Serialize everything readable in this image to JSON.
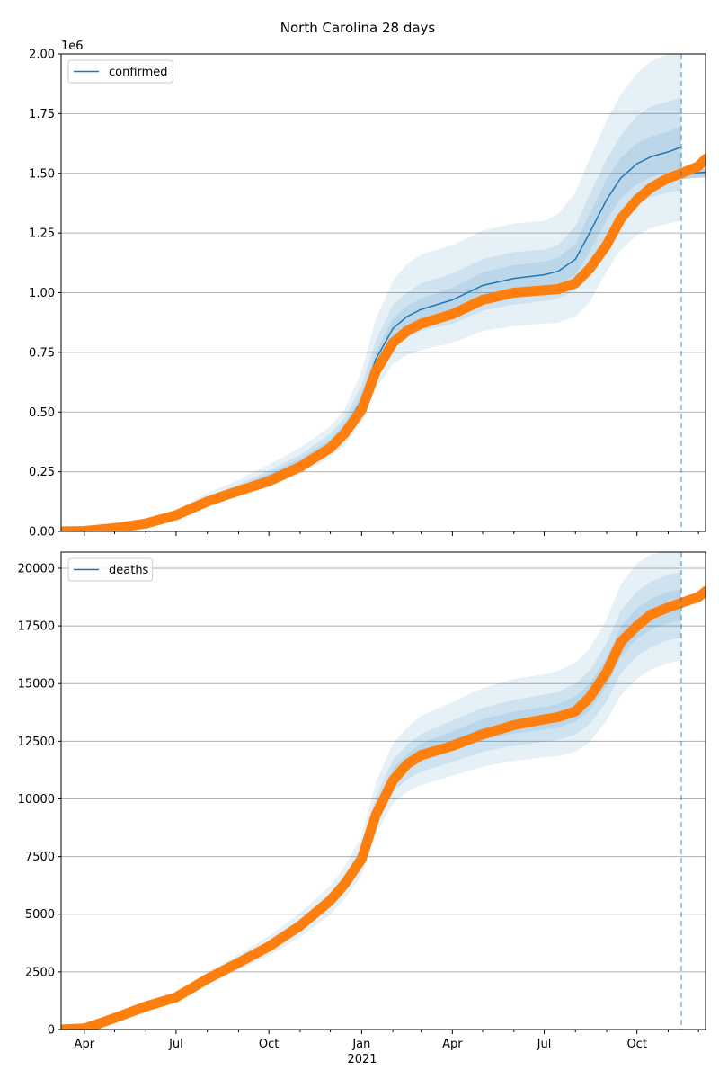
{
  "title": "North Carolina 28 days",
  "x_tick_labels": [
    "Apr",
    "Jul",
    "Oct",
    "Jan",
    "Apr",
    "Jul",
    "Oct"
  ],
  "x_year_label": "2021",
  "colors": {
    "model_line": "#1f77b4",
    "observed": "#ff7f0e",
    "band": "#1f77b4",
    "grid": "#b0b0b0",
    "forecast_marker": "#1f77b4"
  },
  "chart_data": [
    {
      "type": "line",
      "name": "confirmed",
      "legend": "confirmed",
      "legend_position": "top-left",
      "grid": "horizontal",
      "y_offset_label": "1e6",
      "ylim": [
        0,
        2.0
      ],
      "y_ticks": [
        "0.00",
        "0.25",
        "0.50",
        "0.75",
        "1.00",
        "1.25",
        "1.50",
        "1.75",
        "2.00"
      ],
      "xlim": [
        "2020-03-09",
        "2021-12-08"
      ],
      "forecast_start": "2021-11-14",
      "model": {
        "x": [
          "2020-03-09",
          "2020-04-01",
          "2020-05-01",
          "2020-06-01",
          "2020-07-01",
          "2020-08-01",
          "2020-09-01",
          "2020-10-01",
          "2020-11-01",
          "2020-12-01",
          "2020-12-15",
          "2021-01-01",
          "2021-01-15",
          "2021-02-01",
          "2021-02-15",
          "2021-03-01",
          "2021-04-01",
          "2021-05-01",
          "2021-06-01",
          "2021-07-01",
          "2021-07-15",
          "2021-08-01",
          "2021-08-15",
          "2021-09-01",
          "2021-09-15",
          "2021-10-01",
          "2021-10-15",
          "2021-11-01",
          "2021-11-14"
        ],
        "y": [
          0.0,
          0.002,
          0.015,
          0.035,
          0.07,
          0.13,
          0.18,
          0.23,
          0.29,
          0.37,
          0.43,
          0.55,
          0.72,
          0.85,
          0.9,
          0.93,
          0.97,
          1.03,
          1.06,
          1.075,
          1.09,
          1.14,
          1.25,
          1.39,
          1.48,
          1.54,
          1.57,
          1.59,
          1.61
        ]
      },
      "bands": [
        {
          "lower": [
            0.0,
            0.0,
            0.008,
            0.025,
            0.055,
            0.105,
            0.15,
            0.19,
            0.24,
            0.31,
            0.36,
            0.46,
            0.6,
            0.7,
            0.74,
            0.76,
            0.79,
            0.84,
            0.86,
            0.87,
            0.875,
            0.9,
            0.96,
            1.09,
            1.18,
            1.24,
            1.27,
            1.29,
            1.3
          ],
          "upper": [
            0.003,
            0.006,
            0.024,
            0.05,
            0.09,
            0.16,
            0.215,
            0.28,
            0.35,
            0.44,
            0.51,
            0.67,
            0.89,
            1.05,
            1.12,
            1.16,
            1.2,
            1.26,
            1.29,
            1.3,
            1.33,
            1.42,
            1.56,
            1.72,
            1.83,
            1.92,
            1.97,
            2.0,
            2.02
          ]
        },
        {
          "lower": [
            0.0,
            0.0,
            0.011,
            0.029,
            0.062,
            0.115,
            0.163,
            0.205,
            0.262,
            0.337,
            0.39,
            0.5,
            0.66,
            0.77,
            0.81,
            0.84,
            0.87,
            0.925,
            0.95,
            0.965,
            0.975,
            1.01,
            1.09,
            1.22,
            1.31,
            1.37,
            1.4,
            1.42,
            1.43
          ],
          "upper": [
            0.002,
            0.004,
            0.019,
            0.043,
            0.08,
            0.145,
            0.197,
            0.255,
            0.32,
            0.41,
            0.475,
            0.61,
            0.8,
            0.95,
            1.0,
            1.04,
            1.08,
            1.14,
            1.17,
            1.18,
            1.2,
            1.28,
            1.41,
            1.56,
            1.66,
            1.74,
            1.78,
            1.8,
            1.82
          ]
        },
        {
          "lower": [
            0.0,
            0.001,
            0.013,
            0.032,
            0.066,
            0.122,
            0.172,
            0.218,
            0.276,
            0.354,
            0.41,
            0.525,
            0.69,
            0.81,
            0.855,
            0.885,
            0.92,
            0.975,
            1.005,
            1.02,
            1.032,
            1.075,
            1.17,
            1.305,
            1.395,
            1.455,
            1.485,
            1.505,
            1.52
          ],
          "upper": [
            0.002,
            0.003,
            0.017,
            0.038,
            0.075,
            0.138,
            0.188,
            0.242,
            0.304,
            0.386,
            0.45,
            0.575,
            0.75,
            0.89,
            0.945,
            0.975,
            1.02,
            1.085,
            1.115,
            1.13,
            1.148,
            1.205,
            1.33,
            1.475,
            1.565,
            1.625,
            1.655,
            1.675,
            1.7
          ]
        }
      ],
      "forecast_line": {
        "x": [
          "2021-11-14",
          "2021-11-24",
          "2021-12-08"
        ],
        "y": [
          1.49,
          1.5,
          1.505
        ],
        "lower": [
          1.475,
          1.48,
          1.482
        ],
        "upper": [
          1.505,
          1.515,
          1.52
        ]
      },
      "observed": {
        "x": [
          "2020-03-09",
          "2020-04-01",
          "2020-05-01",
          "2020-06-01",
          "2020-07-01",
          "2020-08-01",
          "2020-09-01",
          "2020-10-01",
          "2020-11-01",
          "2020-12-01",
          "2020-12-15",
          "2021-01-01",
          "2021-01-15",
          "2021-02-01",
          "2021-02-15",
          "2021-03-01",
          "2021-04-01",
          "2021-05-01",
          "2021-06-01",
          "2021-07-01",
          "2021-07-15",
          "2021-08-01",
          "2021-08-15",
          "2021-09-01",
          "2021-09-15",
          "2021-10-01",
          "2021-10-15",
          "2021-11-01",
          "2021-11-14",
          "2021-12-01",
          "2021-12-08"
        ],
        "y": [
          0.0,
          0.002,
          0.014,
          0.033,
          0.068,
          0.125,
          0.17,
          0.21,
          0.27,
          0.35,
          0.41,
          0.51,
          0.67,
          0.79,
          0.84,
          0.87,
          0.91,
          0.97,
          1.0,
          1.01,
          1.015,
          1.04,
          1.1,
          1.2,
          1.31,
          1.39,
          1.44,
          1.48,
          1.5,
          1.53,
          1.56
        ]
      }
    },
    {
      "type": "line",
      "name": "deaths",
      "legend": "deaths",
      "legend_position": "top-left",
      "grid": "horizontal",
      "ylim": [
        0,
        20700
      ],
      "y_ticks": [
        "0",
        "2500",
        "5000",
        "7500",
        "10000",
        "12500",
        "15000",
        "17500",
        "20000"
      ],
      "xlim": [
        "2020-03-09",
        "2021-12-08"
      ],
      "forecast_start": "2021-11-14",
      "model": {
        "x": [
          "2020-03-09",
          "2020-04-01",
          "2020-05-01",
          "2020-06-01",
          "2020-07-01",
          "2020-08-01",
          "2020-09-01",
          "2020-10-01",
          "2020-11-01",
          "2020-12-01",
          "2020-12-15",
          "2021-01-01",
          "2021-01-15",
          "2021-02-01",
          "2021-02-15",
          "2021-03-01",
          "2021-04-01",
          "2021-05-01",
          "2021-06-01",
          "2021-07-01",
          "2021-07-15",
          "2021-08-01",
          "2021-08-15",
          "2021-09-01",
          "2021-09-15",
          "2021-10-01",
          "2021-10-15",
          "2021-11-01",
          "2021-11-14"
        ],
        "y": [
          0,
          50,
          500,
          1000,
          1400,
          2200,
          2900,
          3600,
          4500,
          5600,
          6300,
          7500,
          9500,
          11000,
          11600,
          12000,
          12500,
          13000,
          13300,
          13500,
          13600,
          13900,
          14400,
          15500,
          16800,
          17600,
          18000,
          18300,
          18400
        ]
      },
      "bands": [
        {
          "lower": [
            0,
            0,
            400,
            850,
            1250,
            1950,
            2600,
            3200,
            4000,
            5000,
            5650,
            6700,
            8500,
            9800,
            10300,
            10600,
            11000,
            11400,
            11650,
            11800,
            11850,
            12050,
            12450,
            13400,
            14500,
            15200,
            15600,
            15900,
            16000
          ],
          "upper": [
            50,
            120,
            620,
            1180,
            1600,
            2480,
            3250,
            4050,
            5050,
            6250,
            7050,
            8400,
            10700,
            12400,
            13100,
            13600,
            14200,
            14800,
            15200,
            15400,
            15550,
            15900,
            16500,
            17800,
            19300,
            20200,
            20600,
            20750,
            20800
          ]
        },
        {
          "lower": [
            0,
            20,
            440,
            900,
            1310,
            2050,
            2720,
            3360,
            4220,
            5270,
            5930,
            7040,
            8950,
            10320,
            10850,
            11180,
            11600,
            12050,
            12310,
            12480,
            12560,
            12790,
            13240,
            14240,
            15440,
            16200,
            16580,
            16880,
            16990
          ],
          "upper": [
            30,
            90,
            570,
            1110,
            1510,
            2350,
            3090,
            3840,
            4780,
            5930,
            6670,
            7960,
            10080,
            11680,
            12350,
            12820,
            13400,
            13950,
            14290,
            14520,
            14640,
            15010,
            15560,
            16760,
            18160,
            19000,
            19420,
            19720,
            19810
          ]
        },
        {
          "lower": [
            0,
            30,
            470,
            950,
            1360,
            2130,
            2820,
            3500,
            4380,
            5450,
            6140,
            7300,
            9250,
            10700,
            11260,
            11610,
            12080,
            12550,
            12830,
            13010,
            13090,
            13360,
            13840,
            14900,
            16160,
            16940,
            17330,
            17630,
            17730
          ],
          "upper": [
            20,
            70,
            540,
            1060,
            1450,
            2280,
            2990,
            3710,
            4630,
            5760,
            6470,
            7710,
            9760,
            11310,
            11950,
            12400,
            12930,
            13460,
            13780,
            13990,
            14110,
            14450,
            14980,
            16120,
            17460,
            18270,
            18680,
            18980,
            19080
          ]
        }
      ],
      "observed": {
        "x": [
          "2020-03-09",
          "2020-04-01",
          "2020-04-15",
          "2020-05-01",
          "2020-06-01",
          "2020-07-01",
          "2020-08-01",
          "2020-09-01",
          "2020-10-01",
          "2020-11-01",
          "2020-12-01",
          "2020-12-15",
          "2021-01-01",
          "2021-01-15",
          "2021-02-01",
          "2021-02-15",
          "2021-03-01",
          "2021-04-01",
          "2021-05-01",
          "2021-06-01",
          "2021-07-01",
          "2021-07-15",
          "2021-08-01",
          "2021-08-15",
          "2021-09-01",
          "2021-09-15",
          "2021-10-01",
          "2021-10-15",
          "2021-11-01",
          "2021-11-14",
          "2021-12-01",
          "2021-12-08"
        ],
        "y": [
          0,
          50,
          250,
          500,
          1000,
          1400,
          2200,
          2900,
          3600,
          4500,
          5600,
          6300,
          7400,
          9300,
          10800,
          11500,
          11900,
          12300,
          12800,
          13200,
          13450,
          13550,
          13800,
          14400,
          15500,
          16800,
          17500,
          18000,
          18300,
          18500,
          18750,
          19000
        ]
      }
    }
  ]
}
